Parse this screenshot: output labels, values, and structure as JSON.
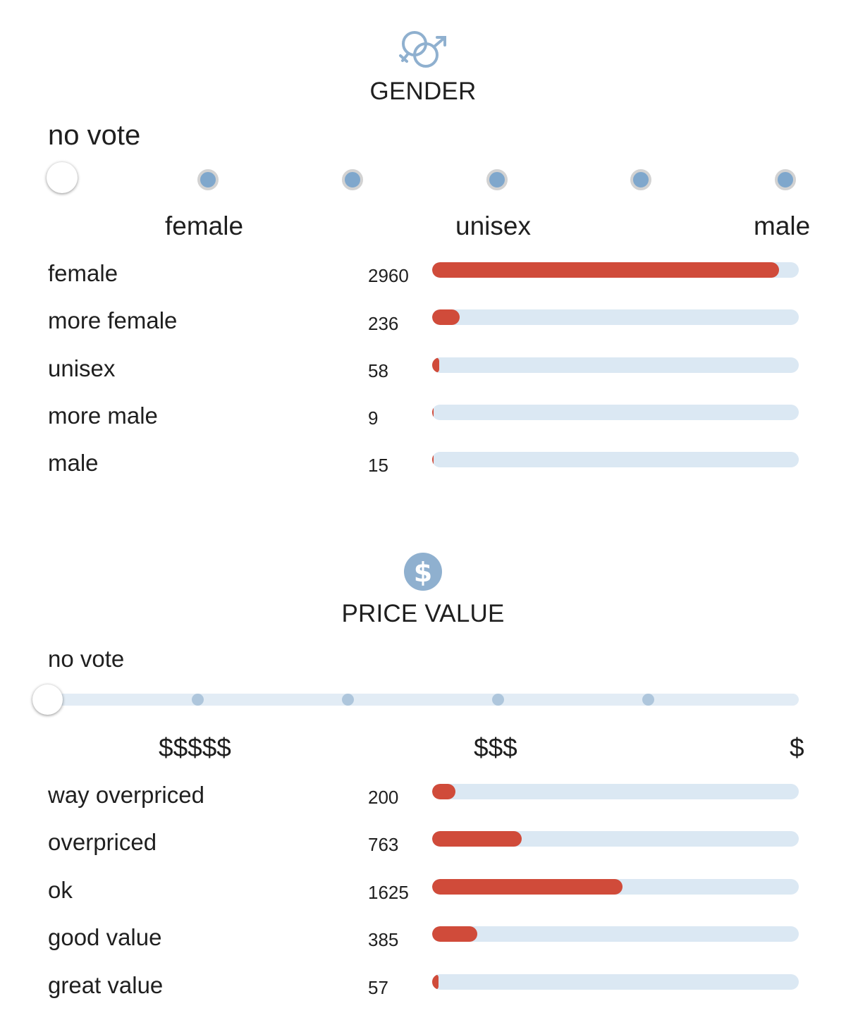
{
  "gender": {
    "icon": "gender-symbols-icon",
    "title": "GENDER",
    "vote_status": "no vote",
    "scale_labels": {
      "left": "female",
      "middle": "unisex",
      "right": "male"
    },
    "max_count": 3130,
    "rows": [
      {
        "label": "female",
        "count": "2960",
        "value": 2960
      },
      {
        "label": "more female",
        "count": "236",
        "value": 236
      },
      {
        "label": "unisex",
        "count": "58",
        "value": 58
      },
      {
        "label": "more male",
        "count": "9",
        "value": 9
      },
      {
        "label": "male",
        "count": "15",
        "value": 15
      }
    ]
  },
  "price_value": {
    "icon": "dollar-coin-icon",
    "title": "PRICE VALUE",
    "vote_status": "no vote",
    "scale_labels": {
      "left": "$$$$$",
      "middle": "$$$",
      "right": "$"
    },
    "max_count": 3130,
    "rows": [
      {
        "label": "way overpriced",
        "count": "200",
        "value": 200
      },
      {
        "label": "overpriced",
        "count": "763",
        "value": 763
      },
      {
        "label": "ok",
        "count": "1625",
        "value": 1625
      },
      {
        "label": "good value",
        "count": "385",
        "value": 385
      },
      {
        "label": "great value",
        "count": "57",
        "value": 57
      }
    ]
  },
  "colors": {
    "bar_fill": "#d04b3a",
    "bar_track": "#dbe8f3",
    "accent_blue": "#7fa7cc"
  }
}
